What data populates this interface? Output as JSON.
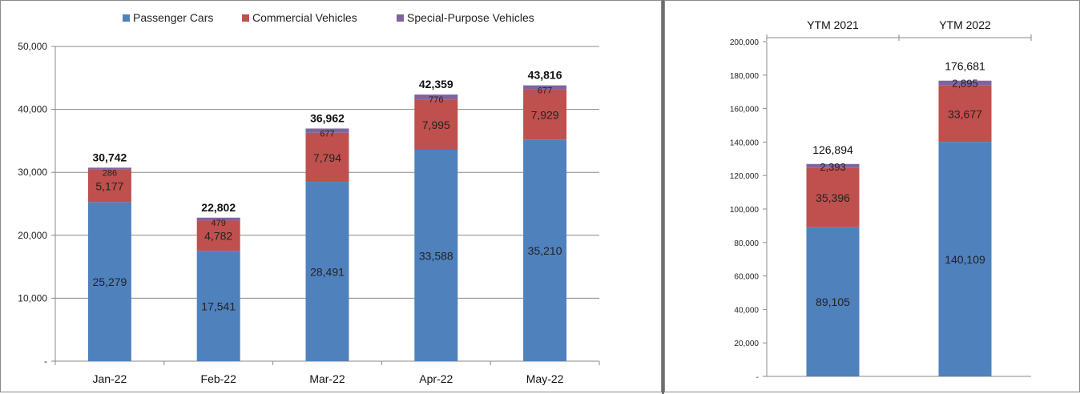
{
  "colors": {
    "passenger": "#4f81bd",
    "commercial": "#c0504d",
    "special": "#8064a2",
    "axis": "#8a8a8a",
    "grid": "#8a8a8a"
  },
  "chart_data": [
    {
      "type": "bar",
      "stacked": true,
      "legend": "top",
      "grid": true,
      "categories": [
        "Jan-22",
        "Feb-22",
        "Mar-22",
        "Apr-22",
        "May-22"
      ],
      "series": [
        {
          "name": "Passenger Cars",
          "values": [
            25279,
            17541,
            28491,
            33588,
            35210
          ],
          "labels": [
            "25,279",
            "17,541",
            "28,491",
            "33,588",
            "35,210"
          ]
        },
        {
          "name": "Commercial Vehicles",
          "values": [
            5177,
            4782,
            7794,
            7995,
            7929
          ],
          "labels": [
            "5,177",
            "4,782",
            "7,794",
            "7,995",
            "7,929"
          ]
        },
        {
          "name": "Special-Purpose Vehicles",
          "values": [
            286,
            479,
            677,
            776,
            677
          ],
          "labels": [
            "286",
            "479",
            "677",
            "776",
            "677"
          ]
        }
      ],
      "totals": [
        "30,742",
        "22,802",
        "36,962",
        "42,359",
        "43,816"
      ],
      "ylim": [
        0,
        50000
      ],
      "yticks": [
        "-",
        "10,000",
        "20,000",
        "30,000",
        "40,000",
        "50,000"
      ]
    },
    {
      "type": "bar",
      "stacked": true,
      "grid": false,
      "categories": [
        "YTM 2021",
        "YTM 2022"
      ],
      "series": [
        {
          "values": [
            89105,
            140109
          ],
          "labels": [
            "89,105",
            "140,109"
          ]
        },
        {
          "values": [
            35396,
            33677
          ],
          "labels": [
            "35,396",
            "33,677"
          ]
        },
        {
          "values": [
            2393,
            2895
          ],
          "labels": [
            "2,393",
            "2,895"
          ]
        }
      ],
      "totals": [
        "126,894",
        "176,681"
      ],
      "ylim": [
        0,
        200000
      ],
      "yticks": [
        "-",
        "20,000",
        "40,000",
        "60,000",
        "80,000",
        "100,000",
        "120,000",
        "140,000",
        "160,000",
        "180,000",
        "200,000"
      ]
    }
  ]
}
